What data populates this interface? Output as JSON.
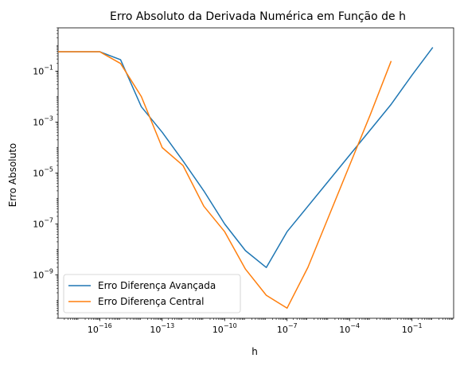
{
  "chart_data": {
    "type": "line",
    "title": "Erro Absoluto da Derivada Numérica em Função de h",
    "xlabel": "h",
    "ylabel": "Erro Absoluto",
    "xscale": "log",
    "yscale": "log",
    "xlim": [
      1e-18,
      10
    ],
    "ylim": [
      2e-11,
      5
    ],
    "grid": false,
    "legend_position": "lower-left",
    "x_ticks": [
      {
        "value": 1e-16,
        "base": "10",
        "exp": "−16"
      },
      {
        "value": 1e-13,
        "base": "10",
        "exp": "−13"
      },
      {
        "value": 1e-10,
        "base": "10",
        "exp": "−10"
      },
      {
        "value": 1e-07,
        "base": "10",
        "exp": "−7"
      },
      {
        "value": 0.0001,
        "base": "10",
        "exp": "−4"
      },
      {
        "value": 0.1,
        "base": "10",
        "exp": "−1"
      }
    ],
    "y_ticks": [
      {
        "value": 0.1,
        "base": "10",
        "exp": "−1"
      },
      {
        "value": 0.001,
        "base": "10",
        "exp": "−3"
      },
      {
        "value": 1e-05,
        "base": "10",
        "exp": "−5"
      },
      {
        "value": 1e-07,
        "base": "10",
        "exp": "−7"
      },
      {
        "value": 1e-09,
        "base": "10",
        "exp": "−9"
      }
    ],
    "x": [
      1e-18,
      1e-17,
      1e-16,
      1e-15,
      1e-14,
      1e-13,
      1e-12,
      1e-11,
      1e-10,
      1e-09,
      1e-08,
      1e-07,
      1e-06,
      1e-05,
      0.0001,
      0.001,
      0.01,
      0.1,
      1
    ],
    "series": [
      {
        "name": "Erro Diferença Avançada",
        "color": "#1f77b4",
        "values": [
          0.58,
          0.58,
          0.58,
          0.28,
          0.004,
          0.0004,
          3e-05,
          2e-06,
          1e-07,
          9e-09,
          1.96e-09,
          5e-08,
          5e-07,
          5e-06,
          5e-05,
          0.0005,
          0.005,
          0.07,
          0.85
        ]
      },
      {
        "name": "Erro Diferença Central",
        "color": "#ff7f0e",
        "values": [
          0.58,
          0.58,
          0.58,
          0.2,
          0.01,
          0.0001,
          2e-05,
          5e-07,
          5e-08,
          1.7e-09,
          1.6e-10,
          5e-11,
          2e-09,
          2e-07,
          2e-05,
          0.002,
          0.25,
          null,
          null
        ]
      }
    ]
  }
}
